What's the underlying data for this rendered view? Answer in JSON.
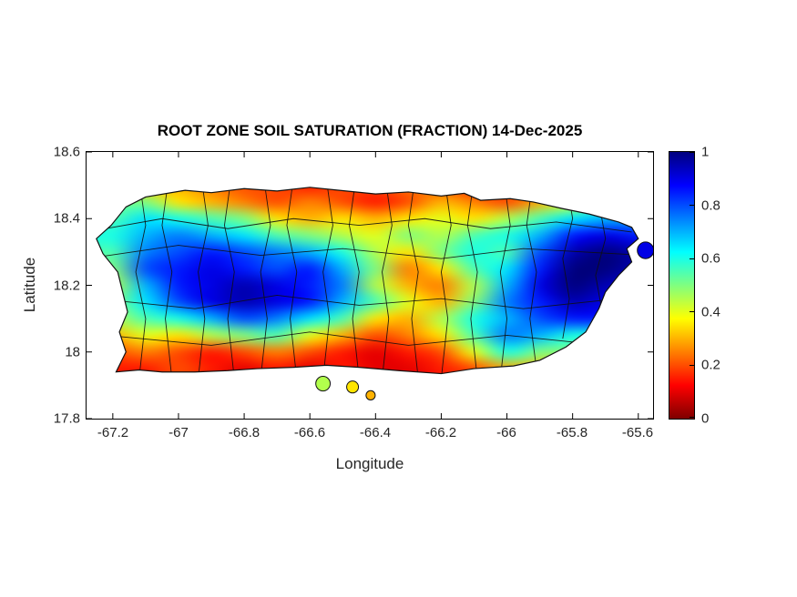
{
  "chart_data": {
    "type": "heatmap",
    "title": "ROOT ZONE SOIL SATURATION (FRACTION) 14-Dec-2025",
    "xlabel": "Longitude",
    "ylabel": "Latitude",
    "xlim": [
      -67.28,
      -65.555
    ],
    "ylim": [
      17.8,
      18.6
    ],
    "xticks": [
      -67.2,
      -67,
      -66.8,
      -66.6,
      -66.4,
      -66.2,
      -66,
      -65.8,
      -65.6
    ],
    "xtick_labels": [
      "-67.2",
      "-67",
      "-66.8",
      "-66.6",
      "-66.4",
      "-66.2",
      "-66",
      "-65.8",
      "-65.6"
    ],
    "yticks": [
      17.8,
      18,
      18.2,
      18.4,
      18.6
    ],
    "ytick_labels": [
      "17.8",
      "18",
      "18.2",
      "18.4",
      "18.6"
    ],
    "colorbar": {
      "ticks": [
        0,
        0.2,
        0.4,
        0.6,
        0.8,
        1
      ],
      "labels": [
        "0",
        "0.2",
        "0.4",
        "0.6",
        "0.8",
        "1"
      ],
      "colormap": "jet-reversed",
      "stops": [
        {
          "offset": "0%",
          "color": "#7f0000"
        },
        {
          "offset": "12.5%",
          "color": "#ff0000"
        },
        {
          "offset": "37.5%",
          "color": "#ffff00"
        },
        {
          "offset": "62.5%",
          "color": "#00ffff"
        },
        {
          "offset": "87.5%",
          "color": "#0000ff"
        },
        {
          "offset": "100%",
          "color": "#00007f"
        }
      ]
    },
    "grid": {
      "lons": [
        -67.2,
        -67.1,
        -67.0,
        -66.9,
        -66.8,
        -66.7,
        -66.6,
        -66.5,
        -66.4,
        -66.3,
        -66.2,
        -66.1,
        -66.0,
        -65.9,
        -65.8,
        -65.7,
        -65.6
      ],
      "lats": [
        18.5,
        18.45,
        18.4,
        18.35,
        18.3,
        18.25,
        18.2,
        18.15,
        18.1,
        18.05,
        18.0,
        17.95,
        17.9
      ],
      "values": [
        [
          null,
          null,
          0.3,
          0.25,
          0.2,
          0.2,
          0.15,
          0.2,
          0.2,
          0.25,
          0.2,
          0.15,
          0.2,
          0.25,
          null,
          null,
          null
        ],
        [
          null,
          0.5,
          0.35,
          0.3,
          0.25,
          0.2,
          0.25,
          0.2,
          0.15,
          0.2,
          0.3,
          0.25,
          0.2,
          0.3,
          0.4,
          0.6,
          null
        ],
        [
          0.55,
          0.65,
          0.6,
          0.55,
          0.5,
          0.35,
          0.3,
          0.35,
          0.3,
          0.35,
          0.4,
          0.35,
          0.45,
          0.55,
          0.65,
          0.7,
          null
        ],
        [
          0.6,
          0.7,
          0.75,
          0.7,
          0.65,
          0.55,
          0.5,
          0.45,
          0.4,
          0.5,
          0.45,
          0.55,
          0.6,
          0.7,
          0.85,
          0.9,
          0.85
        ],
        [
          0.55,
          0.75,
          0.8,
          0.85,
          0.8,
          0.75,
          0.7,
          0.6,
          0.45,
          0.35,
          0.5,
          0.6,
          0.55,
          0.8,
          0.95,
          1,
          0.95
        ],
        [
          0.5,
          0.8,
          0.85,
          0.9,
          0.85,
          0.8,
          0.85,
          0.7,
          0.5,
          0.25,
          0.35,
          0.55,
          0.65,
          0.85,
          1,
          1,
          0.95
        ],
        [
          0.45,
          0.7,
          0.85,
          0.9,
          0.95,
          0.9,
          0.85,
          0.75,
          0.45,
          0.3,
          0.25,
          0.45,
          0.7,
          0.9,
          1,
          0.95,
          0.9
        ],
        [
          0.5,
          0.65,
          0.8,
          0.9,
          0.95,
          0.9,
          0.85,
          0.7,
          0.55,
          0.4,
          0.3,
          0.5,
          0.75,
          0.85,
          0.95,
          0.9,
          null
        ],
        [
          0.45,
          0.55,
          0.6,
          0.7,
          0.8,
          0.75,
          0.65,
          0.55,
          0.35,
          0.3,
          0.45,
          0.6,
          0.7,
          0.8,
          0.85,
          null,
          null
        ],
        [
          0.3,
          0.4,
          0.35,
          0.45,
          0.5,
          0.55,
          0.4,
          0.3,
          0.2,
          0.25,
          0.35,
          0.55,
          0.75,
          0.7,
          0.6,
          null,
          null
        ],
        [
          0.2,
          0.25,
          0.2,
          0.15,
          0.2,
          0.25,
          0.2,
          0.15,
          0.1,
          0.15,
          0.2,
          0.4,
          0.6,
          0.5,
          null,
          null,
          null
        ],
        [
          null,
          0.15,
          0.2,
          0.15,
          0.1,
          0.15,
          0.1,
          0.15,
          0.1,
          0.1,
          0.15,
          0.2,
          0.3,
          null,
          null,
          null,
          null
        ],
        [
          null,
          null,
          null,
          null,
          null,
          null,
          null,
          null,
          null,
          null,
          null,
          null,
          null,
          null,
          null,
          null,
          null
        ]
      ]
    },
    "island_outline": [
      [
        -67.16,
        18.435
      ],
      [
        -67.1,
        18.465
      ],
      [
        -66.98,
        18.485
      ],
      [
        -66.9,
        18.478
      ],
      [
        -66.8,
        18.49
      ],
      [
        -66.7,
        18.483
      ],
      [
        -66.6,
        18.494
      ],
      [
        -66.5,
        18.484
      ],
      [
        -66.4,
        18.474
      ],
      [
        -66.3,
        18.48
      ],
      [
        -66.2,
        18.468
      ],
      [
        -66.13,
        18.476
      ],
      [
        -66.08,
        18.455
      ],
      [
        -65.99,
        18.46
      ],
      [
        -65.92,
        18.45
      ],
      [
        -65.83,
        18.43
      ],
      [
        -65.75,
        18.414
      ],
      [
        -65.66,
        18.39
      ],
      [
        -65.62,
        18.374
      ],
      [
        -65.6,
        18.34
      ],
      [
        -65.635,
        18.31
      ],
      [
        -65.62,
        18.27
      ],
      [
        -65.66,
        18.23
      ],
      [
        -65.7,
        18.18
      ],
      [
        -65.72,
        18.13
      ],
      [
        -65.76,
        18.06
      ],
      [
        -65.82,
        18.015
      ],
      [
        -65.9,
        17.975
      ],
      [
        -65.98,
        17.958
      ],
      [
        -66.1,
        17.95
      ],
      [
        -66.2,
        17.935
      ],
      [
        -66.33,
        17.944
      ],
      [
        -66.45,
        17.954
      ],
      [
        -66.55,
        17.96
      ],
      [
        -66.65,
        17.954
      ],
      [
        -66.76,
        17.95
      ],
      [
        -66.85,
        17.944
      ],
      [
        -66.95,
        17.94
      ],
      [
        -67.05,
        17.94
      ],
      [
        -67.12,
        17.946
      ],
      [
        -67.19,
        17.94
      ],
      [
        -67.16,
        18.0
      ],
      [
        -67.18,
        18.06
      ],
      [
        -67.155,
        18.12
      ],
      [
        -67.17,
        18.18
      ],
      [
        -67.185,
        18.24
      ],
      [
        -67.23,
        18.295
      ],
      [
        -67.25,
        18.34
      ],
      [
        -67.205,
        18.38
      ]
    ],
    "islets": [
      {
        "lon": -66.56,
        "lat": 17.905,
        "r": 0.022,
        "v": 0.45
      },
      {
        "lon": -66.47,
        "lat": 17.895,
        "r": 0.018,
        "v": 0.35
      },
      {
        "lon": -66.415,
        "lat": 17.87,
        "r": 0.014,
        "v": 0.3
      },
      {
        "lon": -65.578,
        "lat": 18.305,
        "r": 0.025,
        "v": 0.9
      }
    ],
    "boundaries": [
      [
        [
          -67.12,
          18.52
        ],
        [
          -67.1,
          18.38
        ],
        [
          -67.13,
          18.24
        ],
        [
          -67.1,
          18.1
        ],
        [
          -67.12,
          17.92
        ]
      ],
      [
        [
          -67.03,
          18.52
        ],
        [
          -67.05,
          18.38
        ],
        [
          -67.02,
          18.24
        ],
        [
          -67.04,
          18.1
        ],
        [
          -67.02,
          17.92
        ]
      ],
      [
        [
          -66.93,
          18.52
        ],
        [
          -66.91,
          18.38
        ],
        [
          -66.94,
          18.24
        ],
        [
          -66.92,
          18.1
        ],
        [
          -66.94,
          17.92
        ]
      ],
      [
        [
          -66.84,
          18.52
        ],
        [
          -66.86,
          18.38
        ],
        [
          -66.83,
          18.24
        ],
        [
          -66.85,
          18.1
        ],
        [
          -66.83,
          17.92
        ]
      ],
      [
        [
          -66.74,
          18.52
        ],
        [
          -66.72,
          18.38
        ],
        [
          -66.75,
          18.24
        ],
        [
          -66.73,
          18.1
        ],
        [
          -66.75,
          17.92
        ]
      ],
      [
        [
          -66.65,
          18.52
        ],
        [
          -66.67,
          18.38
        ],
        [
          -66.64,
          18.24
        ],
        [
          -66.66,
          18.1
        ],
        [
          -66.64,
          17.92
        ]
      ],
      [
        [
          -66.55,
          18.52
        ],
        [
          -66.53,
          18.38
        ],
        [
          -66.56,
          18.24
        ],
        [
          -66.54,
          18.1
        ],
        [
          -66.56,
          17.92
        ]
      ],
      [
        [
          -66.46,
          18.52
        ],
        [
          -66.48,
          18.38
        ],
        [
          -66.45,
          18.24
        ],
        [
          -66.47,
          18.1
        ],
        [
          -66.45,
          17.92
        ]
      ],
      [
        [
          -66.37,
          18.52
        ],
        [
          -66.35,
          18.38
        ],
        [
          -66.38,
          18.24
        ],
        [
          -66.36,
          18.1
        ],
        [
          -66.38,
          17.92
        ]
      ],
      [
        [
          -66.28,
          18.52
        ],
        [
          -66.3,
          18.38
        ],
        [
          -66.27,
          18.24
        ],
        [
          -66.29,
          18.1
        ],
        [
          -66.27,
          17.92
        ]
      ],
      [
        [
          -66.19,
          18.52
        ],
        [
          -66.17,
          18.38
        ],
        [
          -66.2,
          18.24
        ],
        [
          -66.18,
          18.1
        ],
        [
          -66.2,
          17.92
        ]
      ],
      [
        [
          -66.1,
          18.52
        ],
        [
          -66.12,
          18.38
        ],
        [
          -66.09,
          18.24
        ],
        [
          -66.11,
          18.1
        ],
        [
          -66.09,
          17.92
        ]
      ],
      [
        [
          -66.01,
          18.52
        ],
        [
          -65.99,
          18.38
        ],
        [
          -66.02,
          18.24
        ],
        [
          -66.0,
          18.1
        ],
        [
          -66.02,
          17.92
        ]
      ],
      [
        [
          -65.92,
          18.52
        ],
        [
          -65.94,
          18.38
        ],
        [
          -65.91,
          18.24
        ],
        [
          -65.93,
          18.1
        ],
        [
          -65.91,
          17.95
        ]
      ],
      [
        [
          -65.82,
          18.52
        ],
        [
          -65.8,
          18.4
        ],
        [
          -65.83,
          18.28
        ],
        [
          -65.81,
          18.16
        ],
        [
          -65.83,
          18.04
        ]
      ],
      [
        [
          -65.72,
          18.45
        ],
        [
          -65.7,
          18.34
        ],
        [
          -65.73,
          18.23
        ],
        [
          -65.71,
          18.12
        ]
      ],
      [
        [
          -67.28,
          18.36
        ],
        [
          -67.05,
          18.4
        ],
        [
          -66.85,
          18.37
        ],
        [
          -66.65,
          18.4
        ],
        [
          -66.45,
          18.38
        ],
        [
          -66.25,
          18.4
        ],
        [
          -66.05,
          18.37
        ],
        [
          -65.85,
          18.39
        ],
        [
          -65.62,
          18.36
        ]
      ],
      [
        [
          -67.28,
          18.28
        ],
        [
          -67.0,
          18.32
        ],
        [
          -66.75,
          18.29
        ],
        [
          -66.5,
          18.31
        ],
        [
          -66.2,
          18.28
        ],
        [
          -65.95,
          18.31
        ],
        [
          -65.58,
          18.29
        ]
      ],
      [
        [
          -67.25,
          18.16
        ],
        [
          -66.95,
          18.13
        ],
        [
          -66.7,
          18.17
        ],
        [
          -66.45,
          18.14
        ],
        [
          -66.2,
          18.16
        ],
        [
          -65.95,
          18.13
        ],
        [
          -65.66,
          18.16
        ]
      ],
      [
        [
          -67.22,
          18.05
        ],
        [
          -66.9,
          18.02
        ],
        [
          -66.6,
          18.06
        ],
        [
          -66.3,
          18.02
        ],
        [
          -66.0,
          18.05
        ],
        [
          -65.8,
          18.03
        ]
      ]
    ]
  }
}
